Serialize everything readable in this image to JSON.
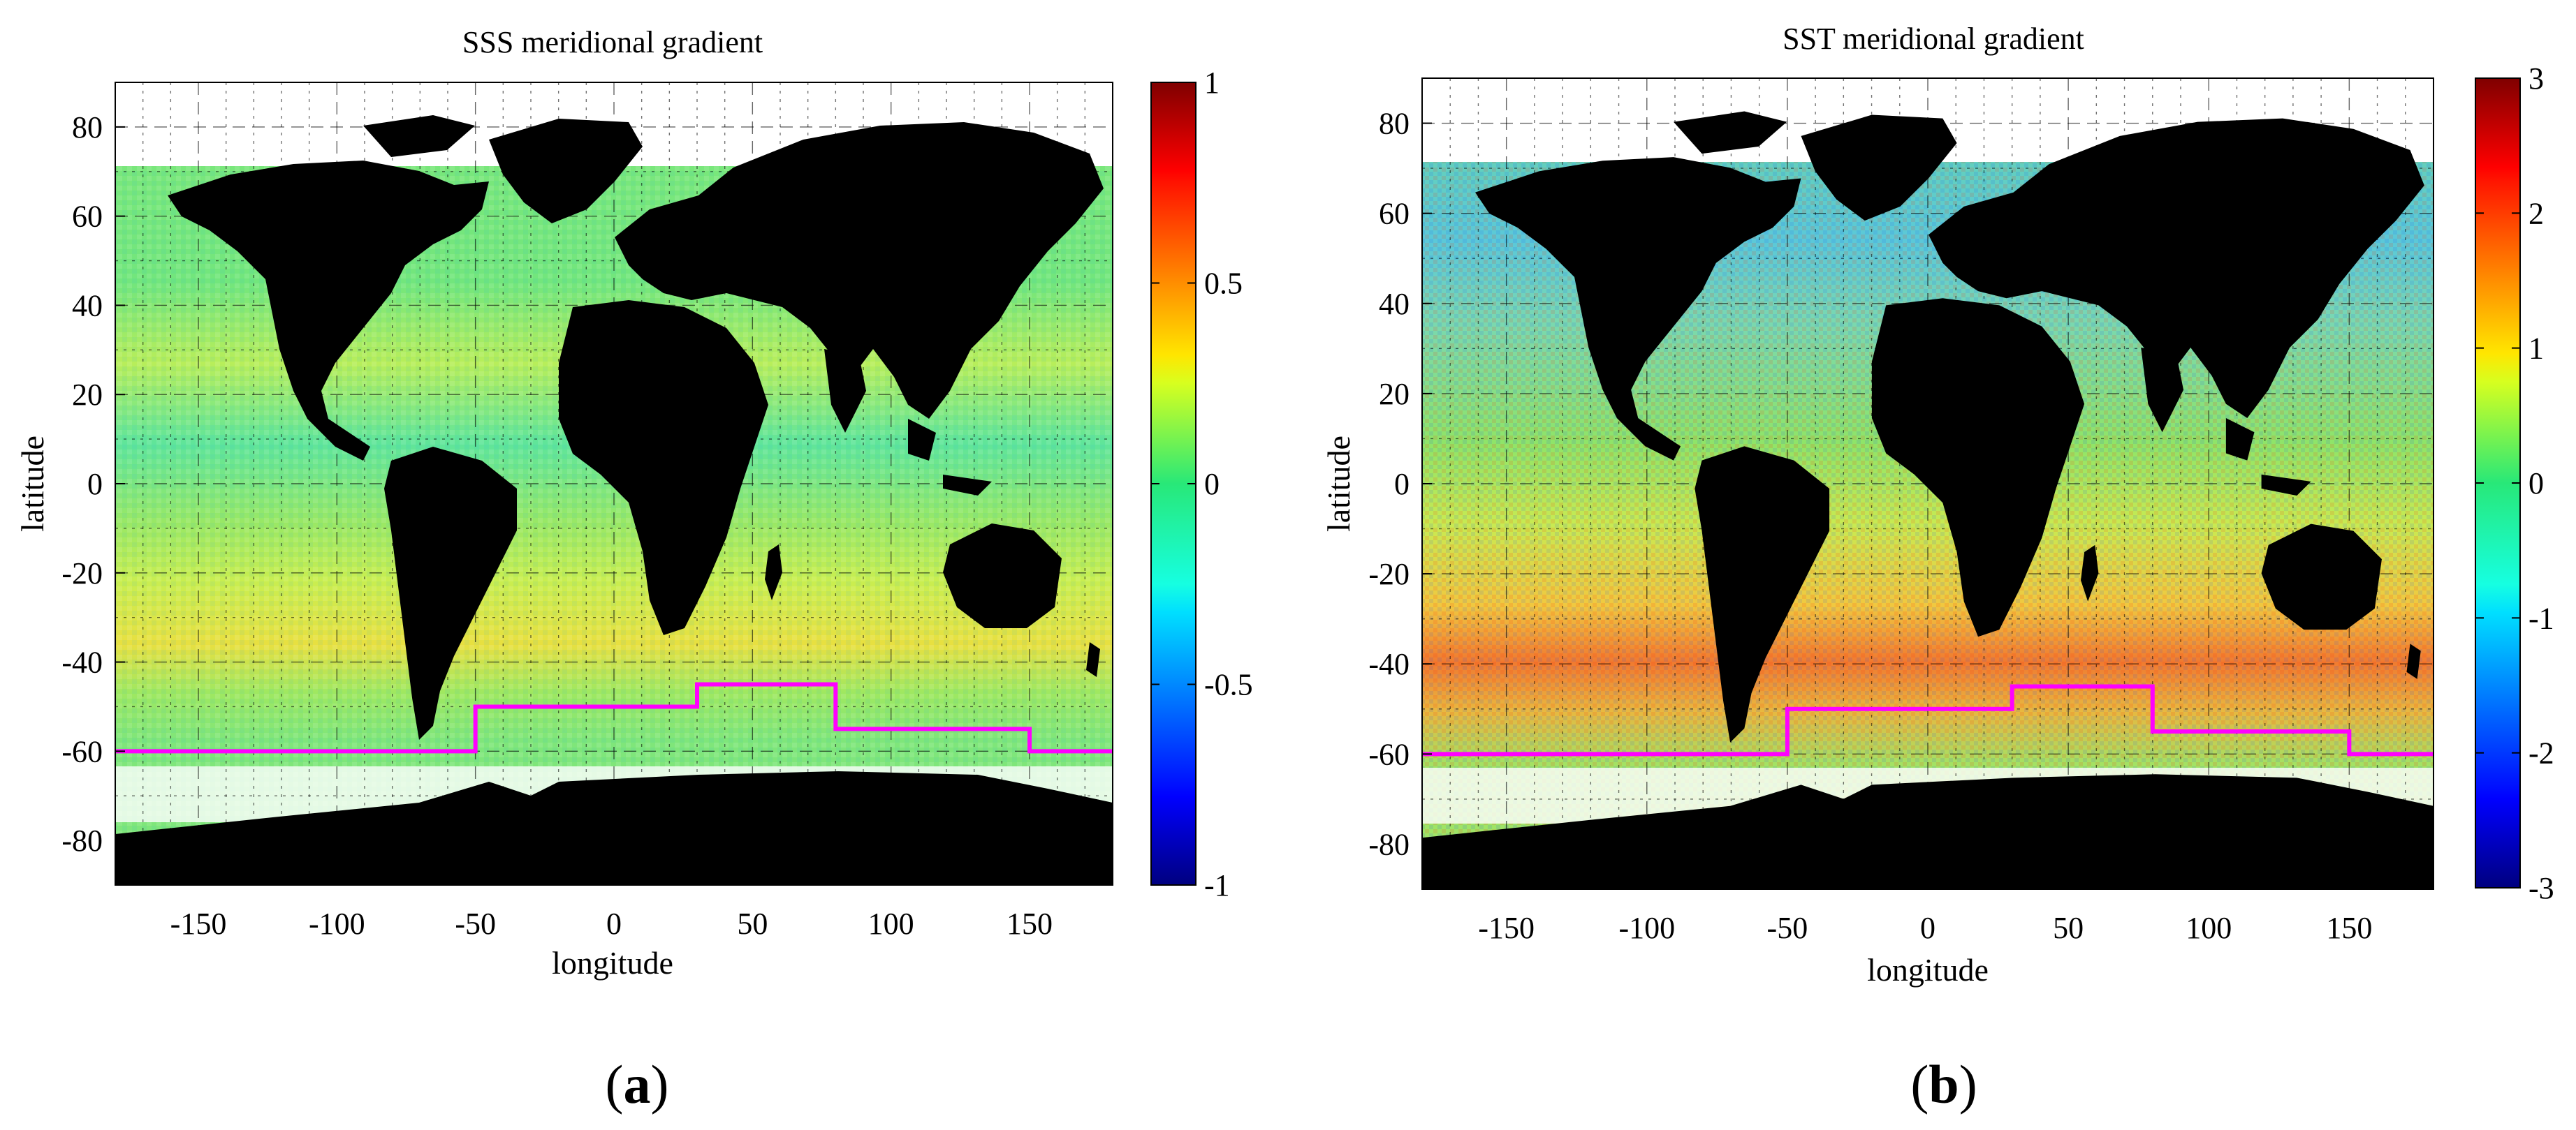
{
  "chart_data": [
    {
      "type": "heatmap",
      "panel_label": "a",
      "title": "SSS meridional gradient",
      "xlabel": "longitude",
      "ylabel": "latitude",
      "xlim": [
        -180,
        180
      ],
      "ylim": [
        -90,
        90
      ],
      "xticks": [
        -150,
        -100,
        -50,
        0,
        50,
        100,
        150
      ],
      "yticks": [
        80,
        60,
        40,
        20,
        0,
        -20,
        -40,
        -60,
        -80
      ],
      "colorbar": {
        "colormap": "jet",
        "range": [
          -1,
          1
        ],
        "ticks": [
          1,
          0.5,
          0,
          -0.5,
          -1
        ],
        "tick_labels": [
          "1",
          "0.5",
          "0",
          "-0.5",
          "-1"
        ]
      },
      "boundary_line": {
        "color": "#ff00ff",
        "points": [
          [
            -180,
            -60
          ],
          [
            -50,
            -60
          ],
          [
            -50,
            -50
          ],
          [
            30,
            -50
          ],
          [
            30,
            -45
          ],
          [
            80,
            -45
          ],
          [
            80,
            -55
          ],
          [
            150,
            -55
          ],
          [
            150,
            -60
          ],
          [
            180,
            -60
          ]
        ]
      },
      "grid": true
    },
    {
      "type": "heatmap",
      "panel_label": "b",
      "title": "SST meridional gradient",
      "xlabel": "longitude",
      "ylabel": "latitude",
      "xlim": [
        -180,
        180
      ],
      "ylim": [
        -90,
        90
      ],
      "xticks": [
        -150,
        -100,
        -50,
        0,
        50,
        100,
        150
      ],
      "yticks": [
        80,
        60,
        40,
        20,
        0,
        -20,
        -40,
        -60,
        -80
      ],
      "colorbar": {
        "colormap": "jet",
        "range": [
          -3,
          3
        ],
        "ticks": [
          3,
          2,
          1,
          0,
          -1,
          -2,
          -3
        ],
        "tick_labels": [
          "3",
          "2",
          "1",
          "0",
          "-1",
          "-2",
          "-3"
        ]
      },
      "boundary_line": {
        "color": "#ff00ff",
        "points": [
          [
            -180,
            -60
          ],
          [
            -50,
            -60
          ],
          [
            -50,
            -50
          ],
          [
            30,
            -50
          ],
          [
            30,
            -45
          ],
          [
            80,
            -45
          ],
          [
            80,
            -55
          ],
          [
            150,
            -55
          ],
          [
            150,
            -60
          ],
          [
            180,
            -60
          ]
        ]
      },
      "grid": true
    }
  ]
}
